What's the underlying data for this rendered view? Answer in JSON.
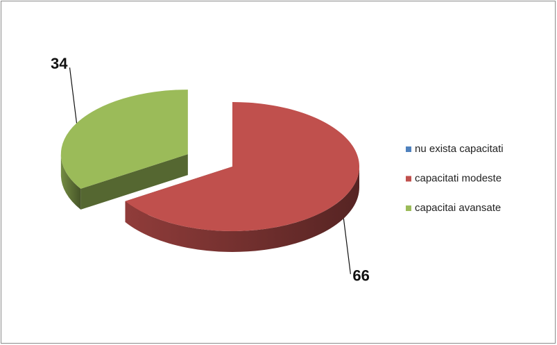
{
  "chart_data": {
    "type": "pie3d",
    "categories": [
      "nu exista capacitati",
      "capacitati modeste",
      "capacitai avansate"
    ],
    "values": [
      0,
      66,
      34
    ],
    "colors": [
      "#4f81bd",
      "#c0504d",
      "#9bbb59"
    ],
    "exploded": [
      false,
      false,
      true
    ],
    "legend": "right"
  }
}
